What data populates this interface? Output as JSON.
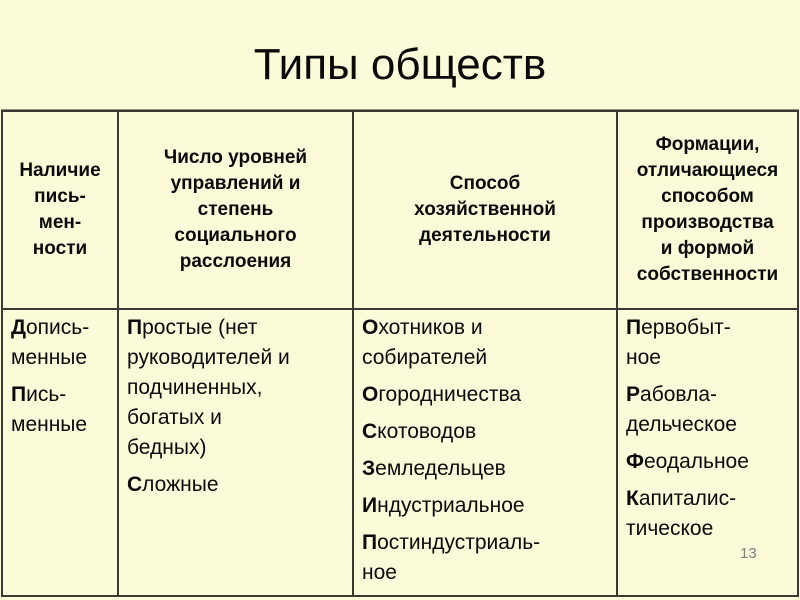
{
  "title": "Типы обществ",
  "page_number": "13",
  "colors": {
    "background": "#FBFBDA",
    "border": "#3A3A32",
    "text": "#0A0A0A",
    "page_number": "#7D7D7D"
  },
  "table": {
    "headers": [
      {
        "text": "Наличие\nпись-\nмен-\nности"
      },
      {
        "text": "Число уровней\nуправлений и\nстепень\nсоциального\nрасслоения"
      },
      {
        "text": "Способ\nхозяйственной\nдеятельности"
      },
      {
        "text": "Формации,\nотличающиеся\nспособом\nпроизводства\nи формой\nсобственности"
      }
    ],
    "body": [
      {
        "paragraphs": [
          {
            "lead": "Д",
            "rest": "опись-\nменные"
          },
          {
            "lead": "П",
            "rest": "ись-\nменные"
          }
        ]
      },
      {
        "paragraphs": [
          {
            "lead": "П",
            "rest": "ростые (нет\nруководителей и\nподчиненных,\nбогатых и\nбедных)"
          },
          {
            "lead": "С",
            "rest": "ложные"
          }
        ]
      },
      {
        "paragraphs": [
          {
            "lead": "О",
            "rest": "хотников и\nсобирателей"
          },
          {
            "lead": "О",
            "rest": "городничества"
          },
          {
            "lead": "С",
            "rest": "котоводов"
          },
          {
            "lead": "З",
            "rest": "емледельцев"
          },
          {
            "lead": "И",
            "rest": "ндустриальное"
          },
          {
            "lead": "П",
            "rest": "остиндустриаль-\nное"
          }
        ]
      },
      {
        "paragraphs": [
          {
            "lead": "П",
            "rest": "ервобыт-\nное"
          },
          {
            "lead": "Р",
            "rest": "абовла-\nдельческое"
          },
          {
            "lead": "Ф",
            "rest": "еодальное"
          },
          {
            "lead": "К",
            "rest": "апиталис-\nтическое"
          }
        ]
      }
    ]
  }
}
